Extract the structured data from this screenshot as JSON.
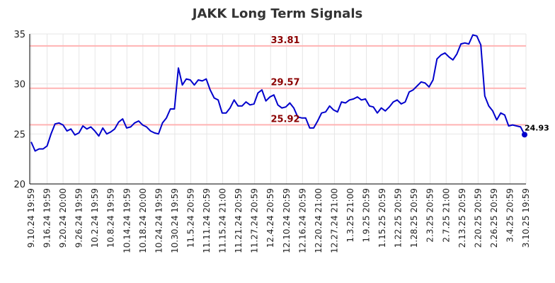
{
  "chart_data": {
    "type": "line",
    "title": "JAKK Long Term Signals",
    "xlabel": "",
    "ylabel": "",
    "ylim": [
      20,
      35
    ],
    "yticks": [
      20,
      25,
      30,
      35
    ],
    "grid": true,
    "xtick_labels": [
      "9.10.24 19:59",
      "9.16.24 19:59",
      "9.20.24 20:00",
      "9.26.24 19:59",
      "10.2.24 19:59",
      "10.8.24 19:59",
      "10.14.24 19:59",
      "10.18.24 20:00",
      "10.24.24 19:59",
      "10.30.24 19:59",
      "11.5.24 20:59",
      "11.11.24 20:59",
      "11.15.24 21:00",
      "11.21.24 20:59",
      "11.27.24 20:59",
      "12.4.24 20:59",
      "12.10.24 20:59",
      "12.16.24 20:59",
      "12.20.24 21:00",
      "12.27.24 21:00",
      "1.3.25 21:00",
      "1.9.25 20:59",
      "1.15.25 20:59",
      "1.22.25 20:59",
      "1.28.25 20:59",
      "2.3.25 20:59",
      "2.7.25 21:00",
      "2.13.25 20:59",
      "2.20.25 20:59",
      "2.26.25 20:59",
      "3.4.25 20:59",
      "3.10.25 19:59"
    ],
    "reference_lines": [
      {
        "value": 33.81,
        "label": "33.81",
        "color": "#ffb3b3"
      },
      {
        "value": 29.57,
        "label": "29.57",
        "color": "#ffb3b3"
      },
      {
        "value": 25.92,
        "label": "25.92",
        "color": "#ffb3b3"
      }
    ],
    "series": [
      {
        "color": "#0000cc",
        "values": [
          24.2,
          23.3,
          23.5,
          23.5,
          23.8,
          25.0,
          26.0,
          26.1,
          25.9,
          25.3,
          25.5,
          24.9,
          25.1,
          25.8,
          25.5,
          25.7,
          25.3,
          24.8,
          25.6,
          25.0,
          25.2,
          25.5,
          26.2,
          26.5,
          25.6,
          25.7,
          26.1,
          26.3,
          25.9,
          25.7,
          25.3,
          25.1,
          25.0,
          26.1,
          26.6,
          27.5,
          27.5,
          31.6,
          29.9,
          30.5,
          30.4,
          29.9,
          30.4,
          30.3,
          30.5,
          29.4,
          28.6,
          28.4,
          27.1,
          27.1,
          27.6,
          28.4,
          27.8,
          27.8,
          28.2,
          27.9,
          28.0,
          29.1,
          29.4,
          28.3,
          28.7,
          28.9,
          27.9,
          27.6,
          27.7,
          28.1,
          27.6,
          26.7,
          26.6,
          26.6,
          25.6,
          25.6,
          26.3,
          27.1,
          27.2,
          27.8,
          27.4,
          27.2,
          28.2,
          28.1,
          28.4,
          28.5,
          28.7,
          28.4,
          28.5,
          27.8,
          27.7,
          27.1,
          27.6,
          27.3,
          27.7,
          28.2,
          28.4,
          28.0,
          28.2,
          29.2,
          29.4,
          29.8,
          30.2,
          30.1,
          29.7,
          30.4,
          32.5,
          32.9,
          33.1,
          32.7,
          32.4,
          33.0,
          34.0,
          34.1,
          34.0,
          34.9,
          34.8,
          33.9,
          28.8,
          27.8,
          27.3,
          26.4,
          27.1,
          26.9,
          25.8,
          25.9,
          25.8,
          25.7,
          24.93
        ],
        "last_value_label": "24.93"
      }
    ]
  }
}
